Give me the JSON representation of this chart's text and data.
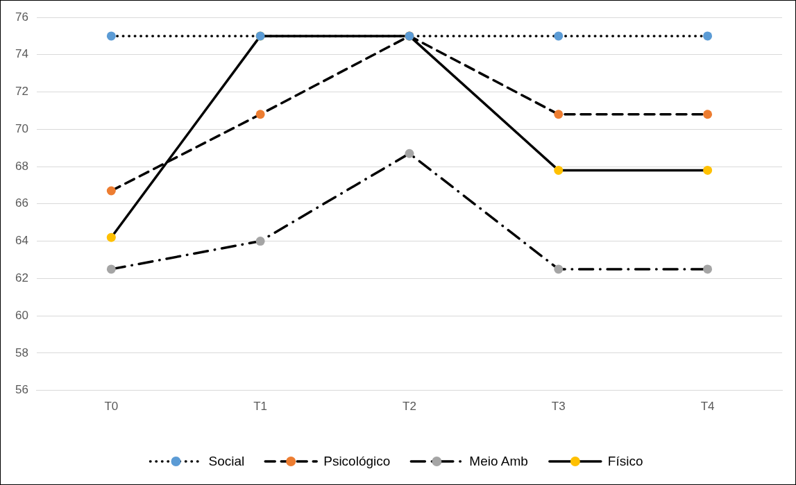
{
  "chart_data": {
    "type": "line",
    "categories": [
      "T0",
      "T1",
      "T2",
      "T3",
      "T4"
    ],
    "series": [
      {
        "name": "Social",
        "color": "#5b9bd5",
        "line_style": "dotted",
        "values": [
          75,
          75,
          75,
          75,
          75
        ]
      },
      {
        "name": "Psicológico",
        "color": "#ed7d31",
        "line_style": "dashed",
        "values": [
          66.7,
          70.8,
          75,
          70.8,
          70.8
        ]
      },
      {
        "name": "Meio Amb",
        "color": "#a5a5a5",
        "line_style": "dashdot",
        "values": [
          62.5,
          64.0,
          68.7,
          62.5,
          62.5
        ]
      },
      {
        "name": "Físico",
        "color": "#ffc000",
        "line_style": "solid",
        "values": [
          64.2,
          75,
          75,
          67.8,
          67.8
        ]
      }
    ],
    "ylim": [
      56,
      76
    ],
    "yticks": [
      56,
      58,
      60,
      62,
      64,
      66,
      68,
      70,
      72,
      74,
      76
    ],
    "grid": "y",
    "legend": "bottom",
    "marker": "circle"
  }
}
